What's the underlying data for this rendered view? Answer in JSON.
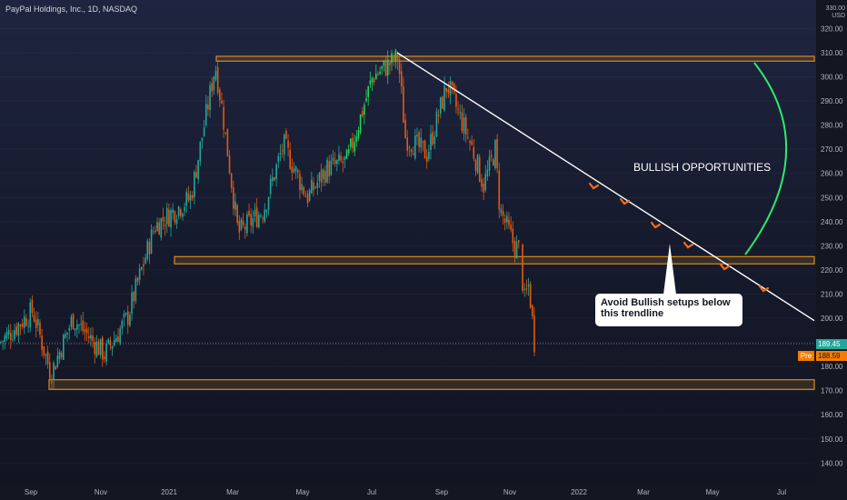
{
  "title": "PayPal Holdings, Inc., 1D, NASDAQ",
  "currency": "USD",
  "price_axis_top": "330.00",
  "annotations": {
    "bullish_text": "BULLISH OPPORTUNITIES",
    "callout_text": "Avoid Bullish setups below this trendline"
  },
  "badges": {
    "last_price": "189.45",
    "pre_label": "Pre",
    "pre_price": "188.59"
  },
  "colors": {
    "up": "#26a69a",
    "up_bright": "#22d45a",
    "down": "#e8590c",
    "zone": "#d98c1a",
    "trendline": "#ffffff",
    "bullish_arc": "#2ee86a",
    "arrows": "#f26b1d"
  },
  "chart_data": {
    "type": "candlestick",
    "y_ticks": [
      140,
      150,
      160,
      170,
      180,
      190,
      200,
      210,
      220,
      230,
      240,
      250,
      260,
      270,
      280,
      290,
      300,
      310,
      320
    ],
    "y_tick_labels": [
      "140.00",
      "150.00",
      "160.00",
      "170.00",
      "180.00",
      "190.00",
      "200.00",
      "210.00",
      "220.00",
      "230.00",
      "240.00",
      "250.00",
      "260.00",
      "270.00",
      "280.00",
      "290.00",
      "300.00",
      "310.00",
      "320.00"
    ],
    "x_ticks": [
      "Sep",
      "Nov",
      "2021",
      "Mar",
      "May",
      "Jul",
      "Sep",
      "Nov",
      "2022",
      "Mar",
      "May",
      "Jul"
    ],
    "zones": [
      {
        "from": 306.5,
        "to": 308.5
      },
      {
        "from": 222.5,
        "to": 225.5
      },
      {
        "from": 170.5,
        "to": 174.5
      }
    ],
    "trendline": {
      "from_date": "Jul 2021",
      "from_price": 310,
      "to_date": "Jul 2022",
      "to_price": 199
    },
    "price_path": [
      {
        "date": "Aug 2020",
        "price": 190
      },
      {
        "date": "Sep 2020",
        "price": 200
      },
      {
        "date": "Oct 2020",
        "price": 178
      },
      {
        "date": "Nov 2020",
        "price": 198
      },
      {
        "date": "Dec 2020",
        "price": 210
      },
      {
        "date": "Jan 2021",
        "price": 240
      },
      {
        "date": "Feb 2021",
        "price": 305
      },
      {
        "date": "Mar 2021",
        "price": 228
      },
      {
        "date": "Apr 2021",
        "price": 250
      },
      {
        "date": "May 2021",
        "price": 270
      },
      {
        "date": "Jun 2021",
        "price": 260
      },
      {
        "date": "Jul 2021",
        "price": 310
      },
      {
        "date": "Aug 2021",
        "price": 270
      },
      {
        "date": "Sep 2021",
        "price": 295
      },
      {
        "date": "Oct 2021",
        "price": 265
      },
      {
        "date": "Nov 2021",
        "price": 230
      },
      {
        "date": "Nov 2021",
        "price": 188
      }
    ],
    "last_price": 189.45,
    "premarket_price": 188.59
  }
}
